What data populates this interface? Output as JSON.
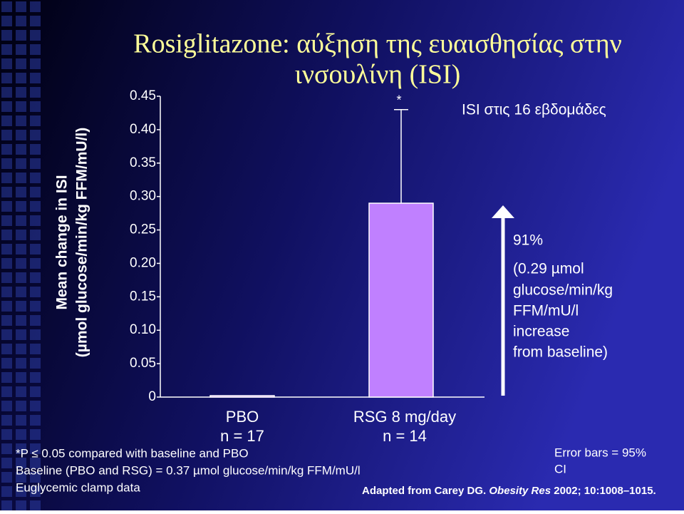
{
  "chart_data": {
    "type": "bar",
    "title": [
      "Rosiglitazone: αύξηση της ευαισθησίας στην",
      "ινσουλίνη (ISI)"
    ],
    "y_label": [
      "Mean change in ISI",
      "(µmol glucose/min/kg FFM/mU/l)"
    ],
    "categories": [
      "PBO",
      "RSG 8 mg/day"
    ],
    "category_notes": [
      "n = 17",
      "n = 14"
    ],
    "values": [
      0,
      0.29
    ],
    "errors": [
      null,
      0.14
    ],
    "color": "#c080ff",
    "ylim": [
      0,
      0.45
    ],
    "yticks": [
      0,
      {
        "value": 0.05,
        "label": "0.05"
      },
      {
        "value": 0.1,
        "label": "0.10"
      },
      0.15,
      {
        "value": 0.2,
        "label": "0.20"
      },
      0.25,
      {
        "value": 0.3,
        "label": "0.30"
      },
      0.35,
      {
        "value": 0.4,
        "label": "0.40"
      },
      0.45
    ],
    "significance_marker": "*",
    "legend_title": "ISI στις 16 εβδομάδες",
    "annotation": [
      "91%",
      "(0.29 µmol",
      "glucose/min/kg",
      "FFM/mU/l",
      "increase",
      "from baseline)"
    ],
    "footnotes": [
      "*P ≤ 0.05 compared with baseline and PBO",
      "Baseline (PBO and RSG) = 0.37 µmol glucose/min/kg FFM/mU/l",
      "Euglycemic clamp data"
    ],
    "error_note": [
      "Error bars = 95%",
      "CI"
    ],
    "citation": [
      "Adapted from Carey DG. ",
      "Obesity Res",
      " 2002; 10:1008–1015."
    ]
  }
}
